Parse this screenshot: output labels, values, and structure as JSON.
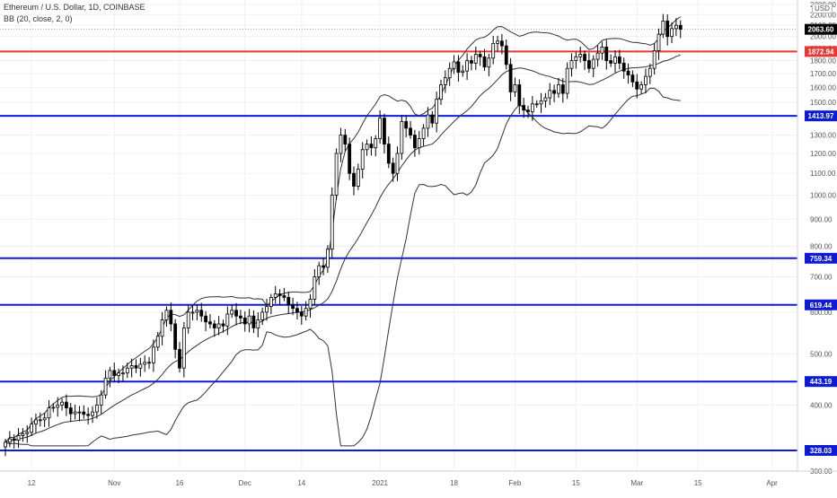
{
  "header": {
    "symbol_line": "Ethereum / U.S. Dollar, 1D, COINBASE",
    "indicator_line": "BB (20, close, 2, 0)"
  },
  "price_axis": {
    "currency_label": "USD"
  },
  "colors": {
    "background": "#ffffff",
    "candle": "#000000",
    "band_line": "#333333",
    "resistance_line": "#e53935",
    "support_line": "#0d1bd6",
    "last_price_label": "#000000",
    "grid": "#f0f0f0",
    "axis_text": "#555555"
  },
  "chart_data": {
    "type": "candlestick",
    "title": "Ethereum / U.S. Dollar, 1D, COINBASE",
    "indicator": "BB (20, close, 2, 0)",
    "y_scale": "log",
    "ylim": [
      290,
      2310
    ],
    "y_ticks": [
      {
        "value": 300,
        "label": "300.00"
      },
      {
        "value": 400,
        "label": "400.00"
      },
      {
        "value": 500,
        "label": "500.00"
      },
      {
        "value": 600,
        "label": "600.00"
      },
      {
        "value": 700,
        "label": "700.00"
      },
      {
        "value": 800,
        "label": "800.00"
      },
      {
        "value": 900,
        "label": "900.00"
      },
      {
        "value": 1000,
        "label": "1000.00"
      },
      {
        "value": 1100,
        "label": "1100.00"
      },
      {
        "value": 1200,
        "label": "1200.00"
      },
      {
        "value": 1300,
        "label": "1300.00"
      },
      {
        "value": 1400,
        "label": "1400.00"
      },
      {
        "value": 1500,
        "label": "1500.00"
      },
      {
        "value": 1600,
        "label": "1600.00"
      },
      {
        "value": 1700,
        "label": "1700.00"
      },
      {
        "value": 1800,
        "label": "1800.00"
      },
      {
        "value": 1900,
        "label": "1900.00"
      },
      {
        "value": 2000,
        "label": "2000.00"
      },
      {
        "value": 2100,
        "label": "2100.00"
      },
      {
        "value": 2200,
        "label": "2200.00"
      },
      {
        "value": 2300,
        "label": "2300.00"
      }
    ],
    "x_ticks": [
      {
        "day": 6,
        "label": "12"
      },
      {
        "day": 25,
        "label": "Nov"
      },
      {
        "day": 40,
        "label": "16"
      },
      {
        "day": 55,
        "label": "Dec"
      },
      {
        "day": 68,
        "label": "14"
      },
      {
        "day": 86,
        "label": "2021"
      },
      {
        "day": 103,
        "label": "18"
      },
      {
        "day": 117,
        "label": "Feb"
      },
      {
        "day": 131,
        "label": "15"
      },
      {
        "day": 145,
        "label": "Mar"
      },
      {
        "day": 159,
        "label": "15"
      },
      {
        "day": 176,
        "label": "Apr"
      }
    ],
    "horizontal_levels": [
      {
        "value": 1872.94,
        "label": "1872.94",
        "kind": "resistance"
      },
      {
        "value": 1413.97,
        "label": "1413.97",
        "kind": "support"
      },
      {
        "value": 759.34,
        "label": "759.34",
        "kind": "support"
      },
      {
        "value": 619.44,
        "label": "619.44",
        "kind": "support"
      },
      {
        "value": 443.19,
        "label": "443.19",
        "kind": "support"
      },
      {
        "value": 328.03,
        "label": "328.03",
        "kind": "support"
      }
    ],
    "last_price": {
      "value": 2063.6,
      "label": "2063.60"
    },
    "closes": [
      340,
      345,
      343,
      350,
      353,
      355,
      368,
      375,
      375,
      378,
      395,
      396,
      400,
      405,
      395,
      385,
      388,
      388,
      384,
      382,
      388,
      400,
      418,
      450,
      465,
      455,
      460,
      460,
      470,
      475,
      470,
      478,
      482,
      481,
      515,
      540,
      580,
      605,
      570,
      510,
      470,
      560,
      600,
      600,
      605,
      590,
      575,
      570,
      560,
      570,
      565,
      595,
      605,
      590,
      585,
      570,
      590,
      560,
      580,
      600,
      615,
      640,
      650,
      645,
      640,
      620,
      610,
      600,
      590,
      610,
      635,
      700,
      735,
      730,
      790,
      1000,
      1200,
      1300,
      1250,
      1100,
      1040,
      1120,
      1220,
      1250,
      1230,
      1280,
      1400,
      1250,
      1150,
      1100,
      1200,
      1380,
      1340,
      1300,
      1230,
      1280,
      1340,
      1420,
      1370,
      1520,
      1620,
      1670,
      1740,
      1790,
      1710,
      1720,
      1800,
      1780,
      1850,
      1830,
      1750,
      1820,
      1940,
      1960,
      1920,
      1770,
      1570,
      1620,
      1480,
      1450,
      1440,
      1490,
      1490,
      1510,
      1530,
      1580,
      1560,
      1620,
      1560,
      1740,
      1800,
      1830,
      1850,
      1800,
      1740,
      1810,
      1860,
      1910,
      1800,
      1780,
      1830,
      1780,
      1720,
      1690,
      1640,
      1590,
      1620,
      1680,
      1740,
      1880,
      2020,
      2140,
      2000,
      2070,
      2100,
      2063.6
    ]
  }
}
